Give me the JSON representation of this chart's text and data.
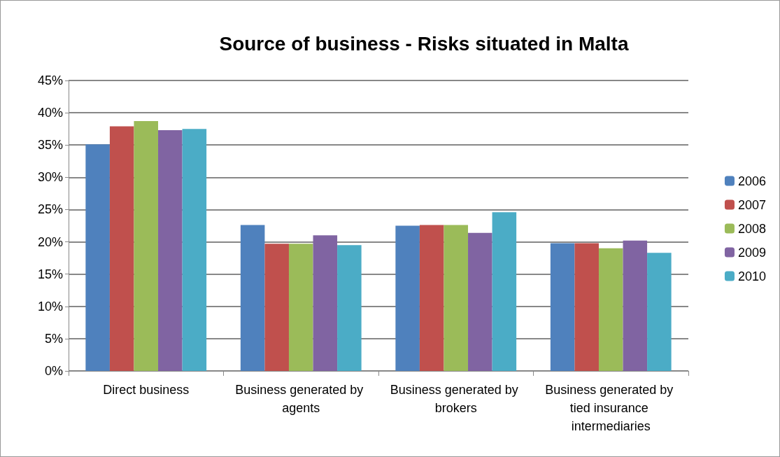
{
  "chart_data": {
    "type": "bar",
    "title": "Source of business - Risks situated in Malta",
    "categories": [
      "Direct business",
      "Business generated by agents",
      "Business generated by brokers",
      "Business generated by tied insurance intermediaries"
    ],
    "series": [
      {
        "name": "2006",
        "color": "#4f81bd",
        "values": [
          35.1,
          22.6,
          22.5,
          19.8
        ]
      },
      {
        "name": "2007",
        "color": "#c0504d",
        "values": [
          37.9,
          19.7,
          22.6,
          19.8
        ]
      },
      {
        "name": "2008",
        "color": "#9bbb59",
        "values": [
          38.7,
          19.7,
          22.6,
          19.0
        ]
      },
      {
        "name": "2009",
        "color": "#8064a2",
        "values": [
          37.3,
          21.0,
          21.4,
          20.2
        ]
      },
      {
        "name": "2010",
        "color": "#4bacc6",
        "values": [
          37.5,
          19.5,
          24.6,
          18.3
        ]
      }
    ],
    "ylim": [
      0,
      45
    ],
    "yticks": [
      {
        "value": 0,
        "label": "0%"
      },
      {
        "value": 5,
        "label": "5%"
      },
      {
        "value": 10,
        "label": "10%"
      },
      {
        "value": 15,
        "label": "15%"
      },
      {
        "value": 20,
        "label": "20%"
      },
      {
        "value": 25,
        "label": "25%"
      },
      {
        "value": 30,
        "label": "30%"
      },
      {
        "value": 35,
        "label": "35%"
      },
      {
        "value": 40,
        "label": "40%"
      },
      {
        "value": 45,
        "label": "45%"
      }
    ],
    "grid": "y",
    "legend": "right"
  }
}
